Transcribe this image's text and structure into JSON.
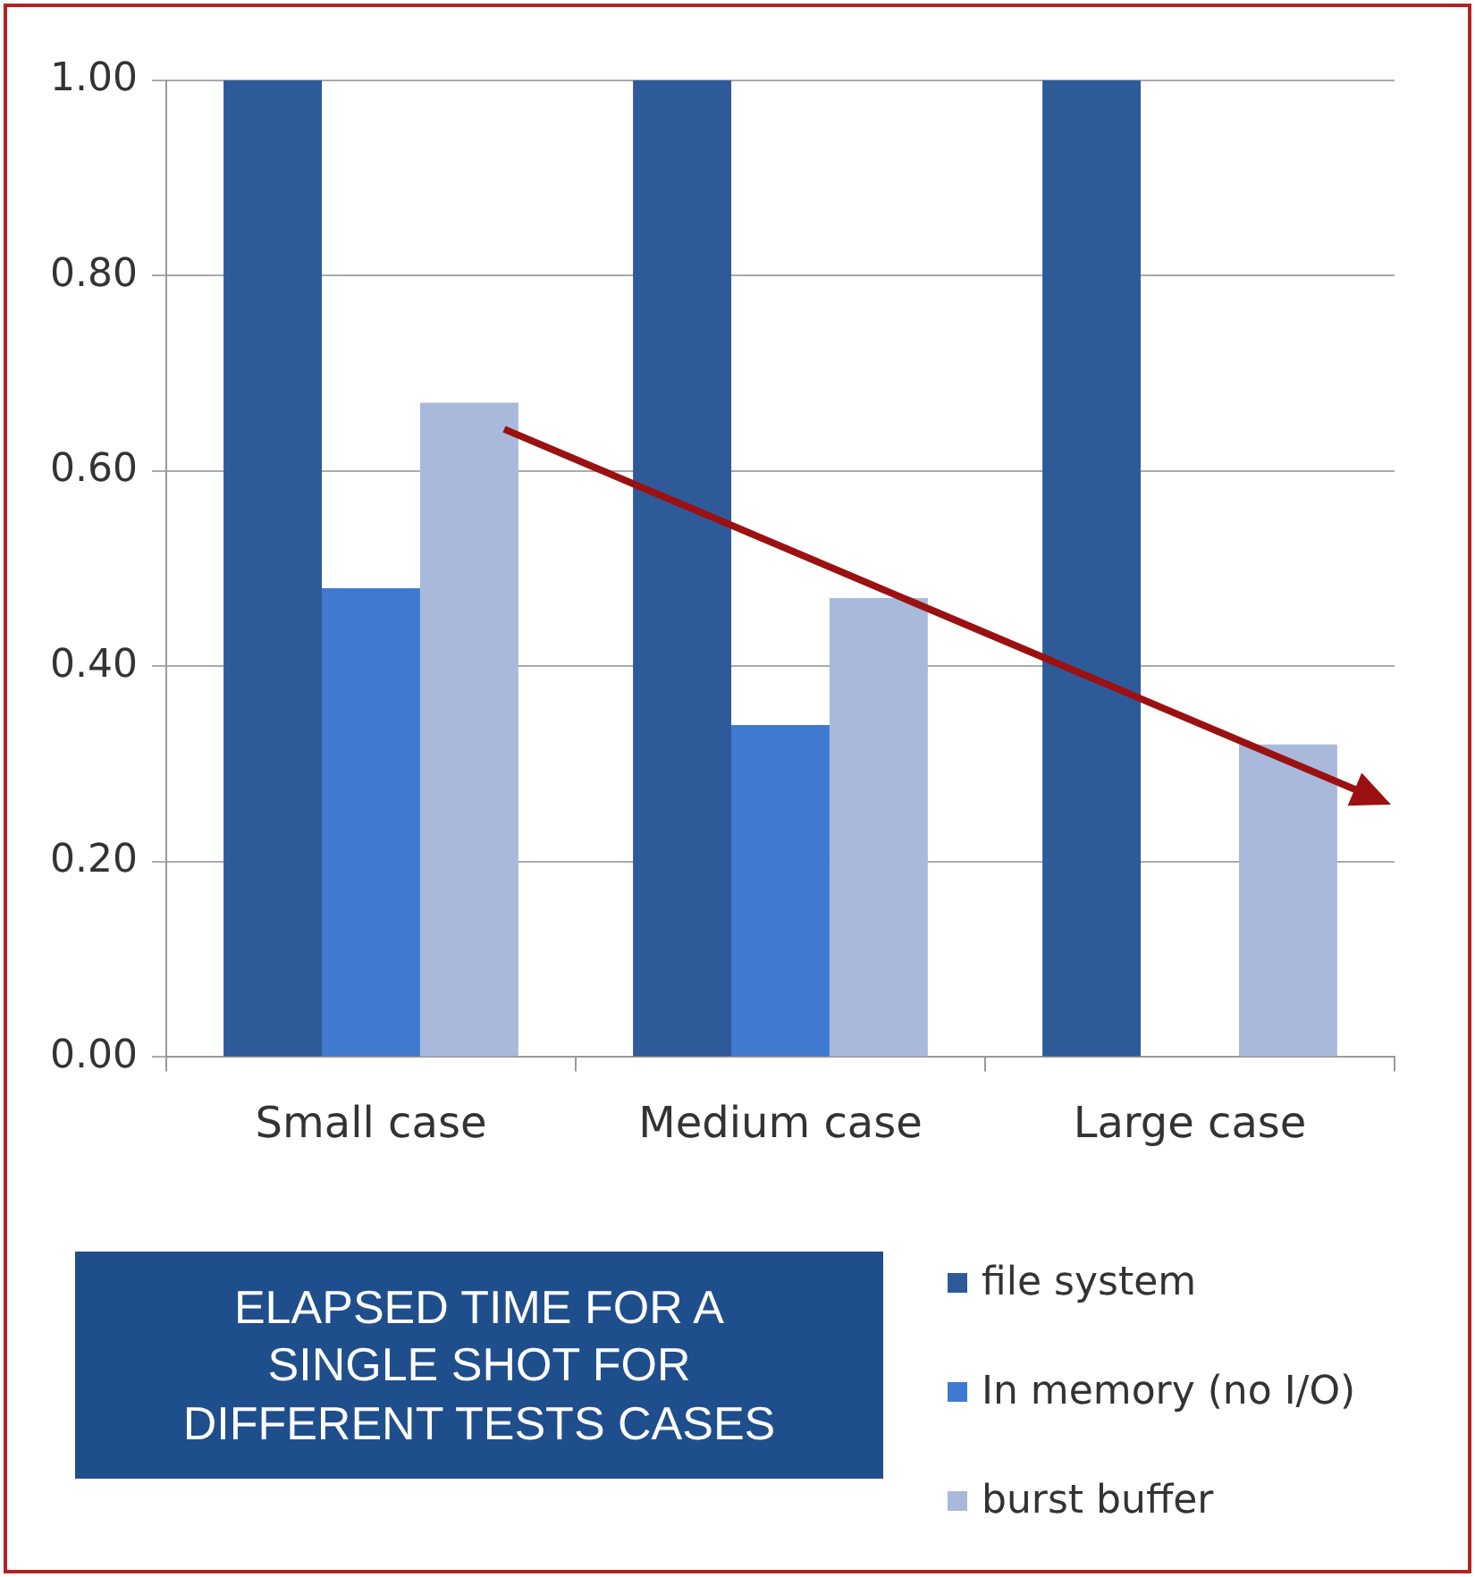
{
  "chart_data": {
    "type": "bar",
    "title": "ELAPSED TIME FOR A SINGLE SHOT FOR DIFFERENT TESTS CASES",
    "categories": [
      "Small case",
      "Medium case",
      "Large case"
    ],
    "series": [
      {
        "name": "file system",
        "color": "#2e5a9a",
        "values": [
          1.0,
          1.0,
          1.0
        ]
      },
      {
        "name": "In memory (no I/O)",
        "color": "#3f7ad0",
        "values": [
          0.48,
          0.34,
          null
        ]
      },
      {
        "name": "burst buffer",
        "color": "#a9b9dc",
        "values": [
          0.67,
          0.47,
          0.32
        ]
      }
    ],
    "ylim": [
      0,
      1
    ],
    "yticks": [
      {
        "value": 0,
        "label": "0.00"
      },
      {
        "value": 0.2,
        "label": "0.20"
      },
      {
        "value": 0.4,
        "label": "0.40"
      },
      {
        "value": 0.6,
        "label": "0.60"
      },
      {
        "value": 0.8,
        "label": "0.80"
      },
      {
        "value": 1,
        "label": "1.00"
      }
    ],
    "grid": "y",
    "legend": "bottom right"
  }
}
